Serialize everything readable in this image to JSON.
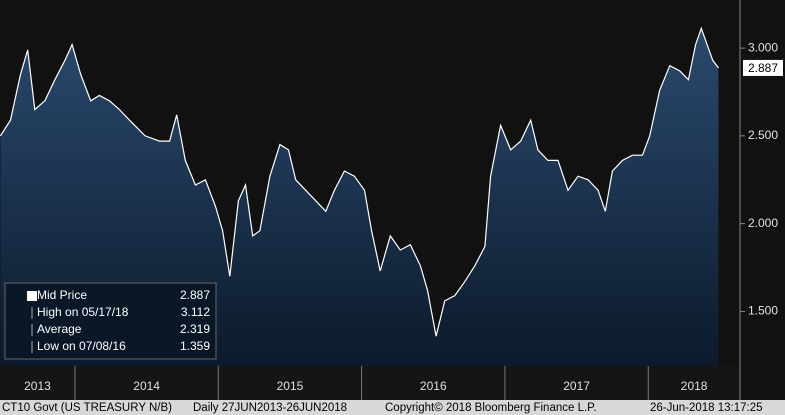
{
  "chart_data": {
    "type": "area",
    "series": [
      {
        "name": "Mid Price",
        "color": "#ffffff",
        "x": [
          2013.48,
          2013.55,
          2013.62,
          2013.67,
          2013.72,
          2013.79,
          2013.86,
          2013.93,
          2013.98,
          2014.04,
          2014.11,
          2014.17,
          2014.24,
          2014.31,
          2014.38,
          2014.49,
          2014.59,
          2014.66,
          2014.71,
          2014.77,
          2014.84,
          2014.91,
          2014.98,
          2015.03,
          2015.08,
          2015.14,
          2015.19,
          2015.24,
          2015.29,
          2015.36,
          2015.43,
          2015.49,
          2015.54,
          2015.61,
          2015.68,
          2015.75,
          2015.81,
          2015.88,
          2015.95,
          2016.02,
          2016.07,
          2016.13,
          2016.2,
          2016.27,
          2016.34,
          2016.41,
          2016.46,
          2016.52,
          2016.58,
          2016.65,
          2016.72,
          2016.79,
          2016.86,
          2016.9,
          2016.97,
          2017.04,
          2017.11,
          2017.18,
          2017.23,
          2017.3,
          2017.37,
          2017.44,
          2017.51,
          2017.58,
          2017.65,
          2017.7,
          2017.75,
          2017.82,
          2017.89,
          2017.96,
          2018.01,
          2018.08,
          2018.15,
          2018.22,
          2018.28,
          2018.33,
          2018.37,
          2018.45,
          2018.49
        ],
        "values": [
          2.5,
          2.59,
          2.85,
          2.99,
          2.65,
          2.7,
          2.82,
          2.93,
          3.02,
          2.85,
          2.7,
          2.73,
          2.7,
          2.65,
          2.59,
          2.5,
          2.47,
          2.47,
          2.62,
          2.36,
          2.22,
          2.25,
          2.1,
          1.96,
          1.7,
          2.13,
          2.22,
          1.93,
          1.96,
          2.27,
          2.45,
          2.42,
          2.25,
          2.19,
          2.13,
          2.07,
          2.19,
          2.3,
          2.27,
          2.19,
          1.96,
          1.73,
          1.93,
          1.85,
          1.88,
          1.76,
          1.62,
          1.359,
          1.56,
          1.59,
          1.67,
          1.76,
          1.87,
          2.27,
          2.56,
          2.42,
          2.47,
          2.59,
          2.42,
          2.36,
          2.36,
          2.19,
          2.27,
          2.25,
          2.19,
          2.07,
          2.3,
          2.36,
          2.39,
          2.39,
          2.5,
          2.76,
          2.9,
          2.87,
          2.82,
          3.02,
          3.112,
          2.93,
          2.887
        ]
      }
    ],
    "xlim": [
      2013.477,
      2018.64
    ],
    "xticks": [
      2014,
      2015,
      2016,
      2017,
      2018
    ],
    "period_labels": [
      "2013",
      "2014",
      "2015",
      "2016",
      "2017",
      "2018"
    ],
    "ylim": [
      1.189,
      3.274
    ],
    "yticks": [
      {
        "value": 1.5,
        "label": "1.500"
      },
      {
        "value": 2,
        "label": "2.000"
      },
      {
        "value": 2.5,
        "label": "2.500"
      },
      {
        "value": 3,
        "label": "3.000"
      }
    ],
    "legend": {
      "position": "lower left",
      "entries": [
        {
          "label": "Mid Price",
          "value": 2.887
        },
        {
          "label": "High on 05/17/18",
          "value": 3.112
        },
        {
          "label": "Average",
          "value": 2.319
        },
        {
          "label": "Low on 07/08/16",
          "value": 1.359
        }
      ]
    },
    "footer": [
      "CT10 Govt (US TREASURY N/B)",
      "Daily 27JUN2013-26JUN2018",
      "Copyright© 2018 Bloomberg Finance L.P.",
      "26-Jun-2018 13:17:25"
    ]
  }
}
